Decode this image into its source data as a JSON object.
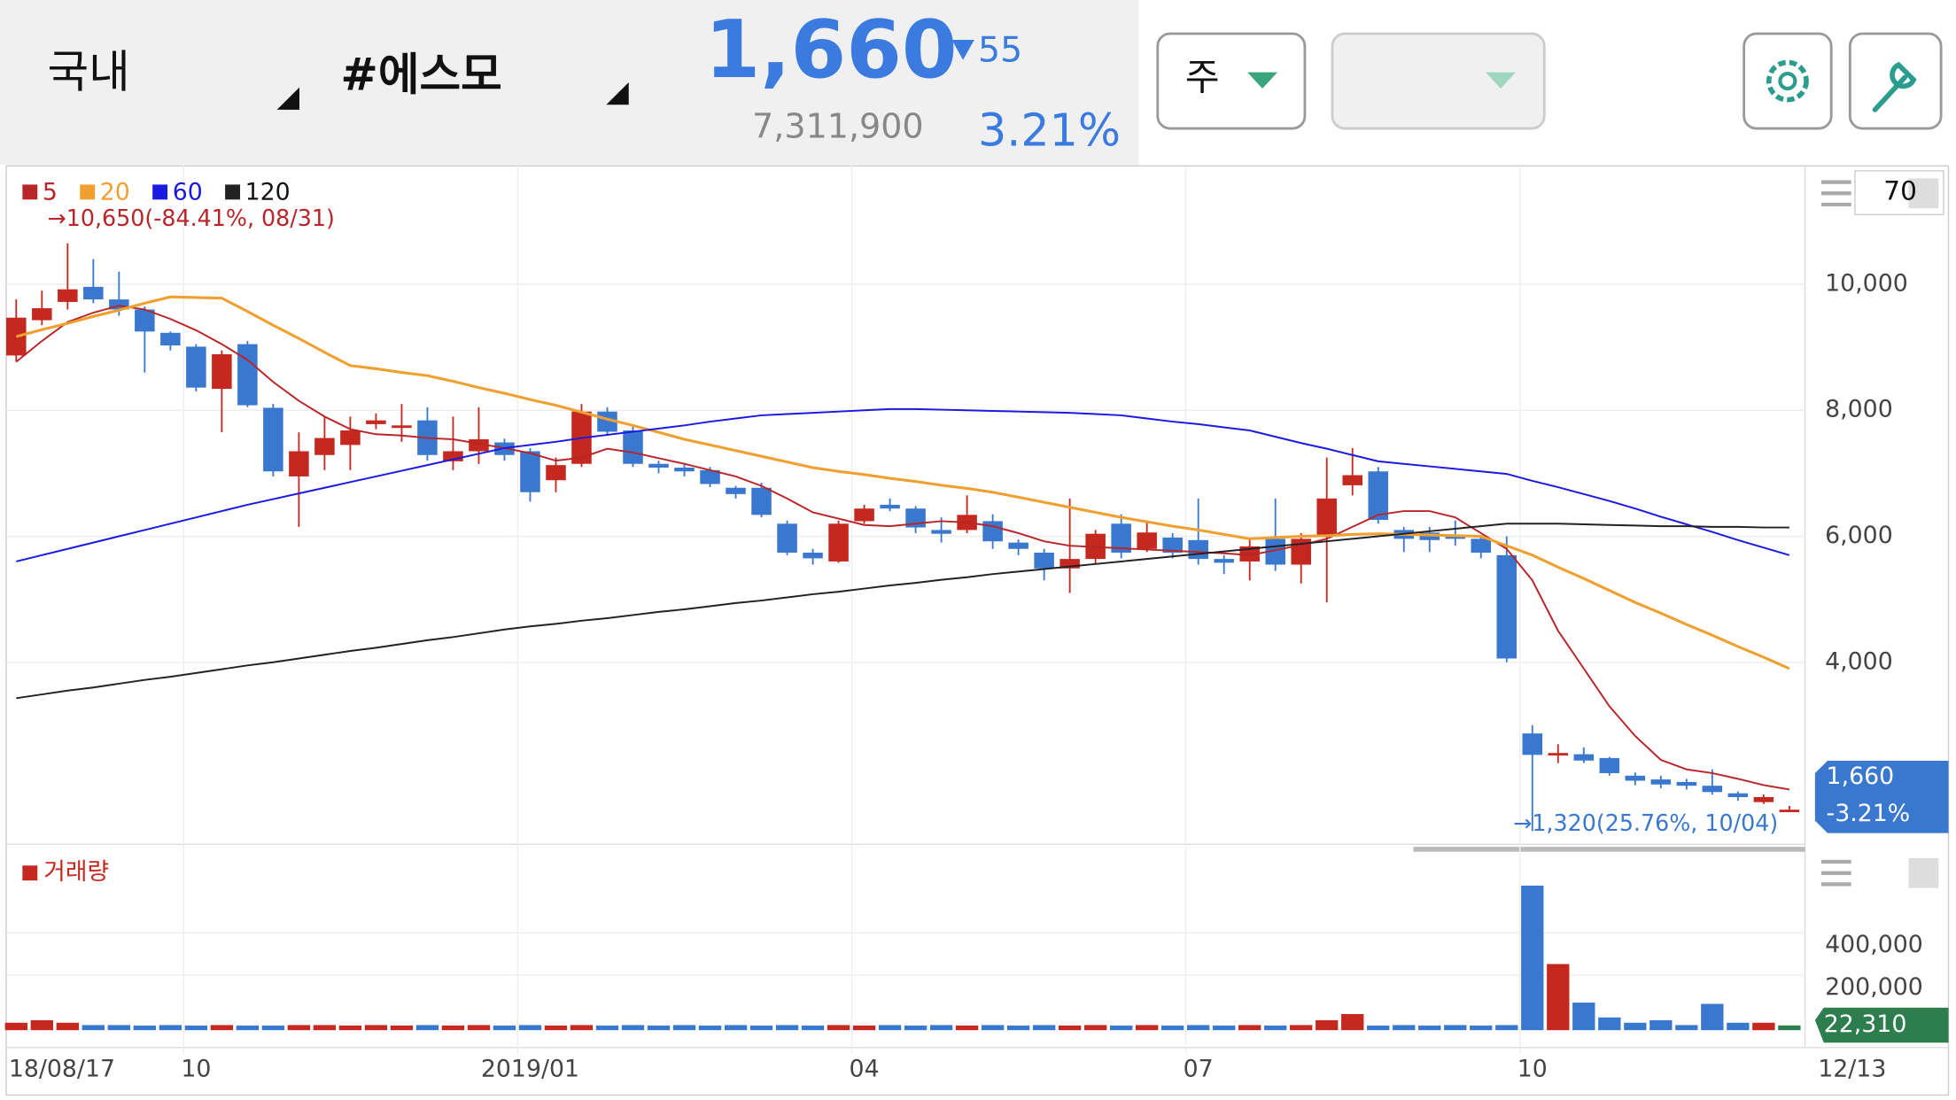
{
  "header": {
    "market": "국내",
    "name": "#에스모",
    "price": "1,660",
    "change": "55",
    "volume": "7,311,900",
    "change_pct": "3.21%"
  },
  "controls": {
    "period": "주",
    "ma_period": "70"
  },
  "chart_data": [
    {
      "type": "candlestick",
      "up_color": "#c4281f",
      "down_color": "#3a78d0",
      "categories": [
        "18/08/17",
        null,
        null,
        null,
        null,
        null,
        null,
        "10",
        null,
        null,
        null,
        null,
        null,
        null,
        null,
        null,
        null,
        null,
        null,
        null,
        "2019/01",
        null,
        null,
        null,
        null,
        null,
        null,
        null,
        null,
        null,
        null,
        null,
        null,
        "04",
        null,
        null,
        null,
        null,
        null,
        null,
        null,
        null,
        null,
        null,
        null,
        null,
        "07",
        null,
        null,
        null,
        null,
        null,
        null,
        null,
        null,
        null,
        null,
        null,
        null,
        "10",
        null,
        null,
        null,
        null,
        null,
        null,
        null,
        null,
        null,
        "12/13"
      ],
      "open": [
        8870,
        9430,
        9720,
        9960,
        9760,
        9600,
        9230,
        9010,
        8340,
        9050,
        8040,
        6950,
        7290,
        7450,
        7780,
        7720,
        7840,
        7190,
        7350,
        7490,
        7350,
        6890,
        7150,
        7980,
        7680,
        7150,
        7090,
        7050,
        6770,
        6770,
        6200,
        5740,
        5600,
        6240,
        6500,
        6440,
        6100,
        6100,
        6240,
        5900,
        5740,
        5490,
        5640,
        6200,
        5800,
        5980,
        5940,
        5640,
        5600,
        5960,
        5550,
        6000,
        6810,
        7030,
        6100,
        6060,
        6020,
        5960,
        5700,
        2870,
        2520,
        2540,
        2480,
        2200,
        2140,
        2100,
        2040,
        1920,
        1780,
        1640
      ],
      "high": [
        9760,
        9900,
        10650,
        10400,
        10200,
        9650,
        9250,
        9050,
        8950,
        9100,
        8100,
        7650,
        7900,
        7900,
        7950,
        8100,
        8050,
        7900,
        8050,
        7550,
        7400,
        7250,
        8100,
        8050,
        7750,
        7200,
        7150,
        7100,
        6800,
        6850,
        6250,
        5800,
        6250,
        6500,
        6600,
        6480,
        6300,
        6650,
        6350,
        5950,
        5800,
        6600,
        6100,
        6350,
        6250,
        6050,
        6600,
        5700,
        5950,
        6600,
        6050,
        7250,
        7400,
        7100,
        6150,
        6150,
        6250,
        6000,
        6000,
        3000,
        2700,
        2650,
        2500,
        2250,
        2200,
        2150,
        2300,
        1950,
        1900,
        1720
      ],
      "low": [
        8770,
        9350,
        9600,
        9700,
        9500,
        8600,
        8950,
        8300,
        7650,
        8050,
        6950,
        6150,
        7050,
        7050,
        7700,
        7500,
        7200,
        7050,
        7150,
        7200,
        6550,
        6700,
        7100,
        7600,
        7100,
        7000,
        6950,
        6780,
        6600,
        6300,
        5700,
        5550,
        5580,
        6200,
        6400,
        6050,
        5900,
        6050,
        5800,
        5700,
        5300,
        5100,
        5550,
        5650,
        5750,
        5650,
        5550,
        5400,
        5300,
        5450,
        5250,
        4950,
        6650,
        6200,
        5750,
        5750,
        5850,
        5650,
        4000,
        1320,
        2400,
        2400,
        2200,
        2050,
        2000,
        1980,
        1900,
        1800,
        1750,
        1620
      ],
      "close": [
        9470,
        9620,
        9920,
        9760,
        9600,
        9250,
        9030,
        8360,
        8890,
        8080,
        7030,
        7350,
        7560,
        7680,
        7840,
        7760,
        7290,
        7350,
        7540,
        7290,
        6700,
        7130,
        7980,
        7660,
        7150,
        7090,
        7030,
        6830,
        6670,
        6340,
        5740,
        5650,
        6200,
        6440,
        6440,
        6140,
        6040,
        6340,
        5920,
        5800,
        5490,
        5640,
        6040,
        5740,
        6060,
        5740,
        5640,
        5580,
        5840,
        5550,
        5960,
        6600,
        6970,
        6260,
        5960,
        5940,
        5960,
        5740,
        4060,
        2530,
        2560,
        2440,
        2240,
        2120,
        2060,
        2040,
        1940,
        1860,
        1860,
        1660
      ],
      "series": [
        {
          "name": "5",
          "color": "#b8262a",
          "values": [
            8770,
            9100,
            9400,
            9550,
            9660,
            9600,
            9450,
            9270,
            9050,
            8800,
            8450,
            8150,
            7900,
            7700,
            7620,
            7600,
            7560,
            7540,
            7470,
            7400,
            7320,
            7200,
            7250,
            7390,
            7330,
            7240,
            7150,
            7050,
            6950,
            6800,
            6600,
            6380,
            6280,
            6180,
            6160,
            6200,
            6240,
            6220,
            6160,
            6050,
            5920,
            5850,
            5830,
            5810,
            5790,
            5770,
            5750,
            5730,
            5700,
            5780,
            5860,
            5960,
            6150,
            6340,
            6400,
            6400,
            6300,
            6050,
            5800,
            5300,
            4500,
            3900,
            3300,
            2830,
            2450,
            2300,
            2240,
            2150,
            2050,
            1980
          ]
        },
        {
          "name": "20",
          "color": "#f0a030",
          "values": [
            9170,
            9280,
            9380,
            9490,
            9590,
            9700,
            9800,
            9790,
            9780,
            9570,
            9350,
            9140,
            8920,
            8710,
            8660,
            8600,
            8550,
            8460,
            8360,
            8270,
            8170,
            8080,
            7970,
            7860,
            7760,
            7650,
            7540,
            7450,
            7360,
            7270,
            7180,
            7090,
            7030,
            6980,
            6920,
            6870,
            6810,
            6760,
            6700,
            6620,
            6540,
            6460,
            6380,
            6300,
            6230,
            6160,
            6100,
            6030,
            5960,
            5980,
            6000,
            6010,
            6030,
            6040,
            6030,
            6020,
            6010,
            6000,
            5850,
            5700,
            5510,
            5330,
            5140,
            4950,
            4780,
            4600,
            4430,
            4250,
            4080,
            3900
          ]
        },
        {
          "name": "60",
          "color": "#1a1ae0",
          "values": [
            5600,
            5700,
            5800,
            5900,
            6000,
            6100,
            6200,
            6300,
            6400,
            6500,
            6590,
            6680,
            6770,
            6860,
            6950,
            7040,
            7130,
            7220,
            7310,
            7400,
            7450,
            7500,
            7560,
            7610,
            7660,
            7710,
            7760,
            7820,
            7870,
            7920,
            7940,
            7960,
            7980,
            8000,
            8020,
            8020,
            8010,
            8000,
            7990,
            7980,
            7970,
            7960,
            7940,
            7920,
            7870,
            7820,
            7780,
            7730,
            7680,
            7580,
            7480,
            7390,
            7290,
            7190,
            7150,
            7110,
            7070,
            7030,
            6990,
            6880,
            6780,
            6670,
            6560,
            6440,
            6310,
            6190,
            6070,
            5940,
            5820,
            5700
          ]
        },
        {
          "name": "120",
          "color": "#222222",
          "values": [
            3430,
            3490,
            3550,
            3600,
            3660,
            3720,
            3770,
            3830,
            3890,
            3950,
            4000,
            4060,
            4120,
            4180,
            4230,
            4290,
            4350,
            4400,
            4460,
            4520,
            4570,
            4610,
            4660,
            4700,
            4750,
            4800,
            4840,
            4890,
            4940,
            4980,
            5030,
            5080,
            5120,
            5170,
            5220,
            5260,
            5310,
            5350,
            5400,
            5440,
            5480,
            5520,
            5560,
            5600,
            5640,
            5680,
            5720,
            5760,
            5800,
            5840,
            5880,
            5920,
            5960,
            6000,
            6040,
            6080,
            6120,
            6160,
            6200,
            6200,
            6200,
            6190,
            6180,
            6170,
            6160,
            6160,
            6150,
            6150,
            6140,
            6140
          ]
        }
      ],
      "ylim": [
        1110,
        11880
      ],
      "yticks": [
        {
          "value": 4000,
          "label": "4,000"
        },
        {
          "value": 6000,
          "label": "6,000"
        },
        {
          "value": 8000,
          "label": "8,000"
        },
        {
          "value": 10000,
          "label": "10,000"
        }
      ],
      "grid": true,
      "high_annotation": "→10,650(-84.41%, 08/31)",
      "low_annotation": "→1,320(25.76%, 10/04)",
      "last_price_label": "1,660",
      "last_change_label": "-3.21%"
    },
    {
      "type": "bar",
      "title": "거래량",
      "latest_color": "#2e7d4f",
      "values": [
        35000,
        47000,
        35000,
        24000,
        24000,
        22000,
        24000,
        22000,
        24000,
        22000,
        22000,
        24000,
        24000,
        22000,
        24000,
        22000,
        24000,
        22000,
        24000,
        22000,
        24000,
        22000,
        24000,
        22000,
        24000,
        22000,
        24000,
        22000,
        24000,
        22000,
        24000,
        22000,
        24000,
        22000,
        24000,
        22000,
        24000,
        22000,
        24000,
        22000,
        24000,
        22000,
        24000,
        22000,
        24000,
        22000,
        24000,
        22000,
        24000,
        22000,
        24000,
        47000,
        76000,
        22000,
        24000,
        22000,
        24000,
        22000,
        24000,
        682000,
        312000,
        130000,
        60000,
        35000,
        47000,
        24000,
        124000,
        35000,
        35000,
        22310
      ],
      "last_label": "22,310",
      "ylim": [
        0,
        812000
      ],
      "yticks": [
        {
          "value": 200000,
          "label": "200,000"
        },
        {
          "value": 400000,
          "label": "400,000"
        }
      ]
    }
  ]
}
